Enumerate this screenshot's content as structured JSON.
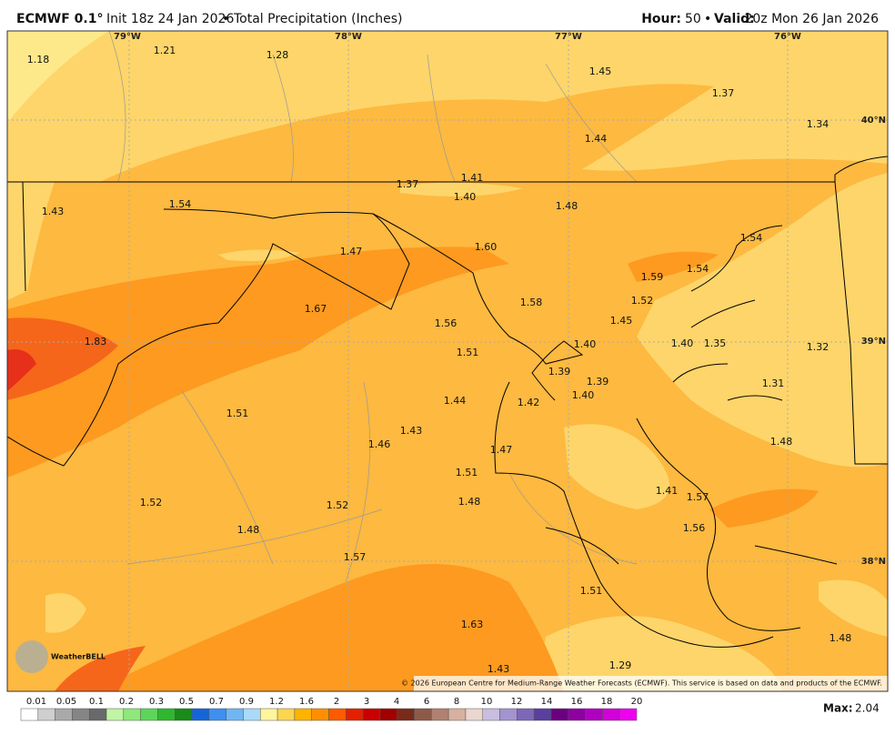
{
  "header": {
    "model": "ECMWF 0.1°",
    "init": "Init 18z 24 Jan 2026",
    "separator": "•",
    "product": "Total Precipitation (Inches)",
    "hour_label": "Hour:",
    "hour": "50",
    "valid_label": "Valid:",
    "valid": "20z Mon 26 Jan 2026"
  },
  "map": {
    "longitude_labels": [
      "79°W",
      "78°W",
      "77°W",
      "76°W"
    ],
    "latitude_labels": [
      "40°N",
      "39°N",
      "38°N"
    ],
    "values": [
      "1.18",
      "1.21",
      "1.28",
      "1.45",
      "1.37",
      "1.34",
      "1.44",
      "1.37",
      "1.41",
      "1.40",
      "1.48",
      "1.43",
      "1.54",
      "1.54",
      "1.47",
      "1.60",
      "1.59",
      "1.54",
      "1.58",
      "1.52",
      "1.67",
      "1.56",
      "1.45",
      "1.83",
      "1.51",
      "1.40",
      "1.40",
      "1.35",
      "1.32",
      "1.39",
      "1.39",
      "1.31",
      "1.40",
      "1.44",
      "1.42",
      "1.51",
      "1.43",
      "1.46",
      "1.48",
      "1.47",
      "1.51",
      "1.41",
      "1.57",
      "1.52",
      "1.52",
      "1.48",
      "1.56",
      "1.48",
      "1.57",
      "1.51",
      "1.63",
      "1.48",
      "1.43",
      "1.29"
    ],
    "logo": "WeatherBELL",
    "copyright": "© 2026 European Centre for Medium-Range Weather Forecasts (ECMWF). This service is based on data and products of the ECMWF."
  },
  "colorbar": {
    "labels": [
      "0.01",
      "0.05",
      "0.1",
      "0.2",
      "0.3",
      "0.5",
      "0.7",
      "0.9",
      "1.2",
      "1.6",
      "2",
      "3",
      "4",
      "6",
      "8",
      "10",
      "12",
      "14",
      "16",
      "18",
      "20"
    ]
  },
  "max": {
    "label": "Max:",
    "value": "2.04"
  }
}
